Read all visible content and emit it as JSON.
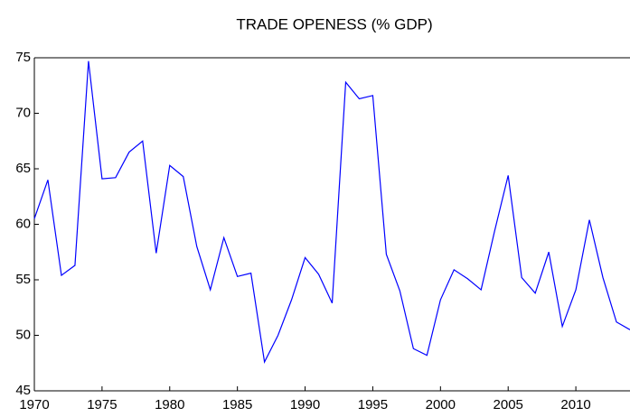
{
  "chart_data": {
    "type": "line",
    "title": "TRADE OPENESS (% GDP)",
    "x": [
      1970,
      1971,
      1972,
      1973,
      1974,
      1975,
      1976,
      1977,
      1978,
      1979,
      1980,
      1981,
      1982,
      1983,
      1984,
      1985,
      1986,
      1987,
      1988,
      1989,
      1990,
      1991,
      1992,
      1993,
      1994,
      1995,
      1996,
      1997,
      1998,
      1999,
      2000,
      2001,
      2002,
      2003,
      2004,
      2005,
      2006,
      2007,
      2008,
      2009,
      2010,
      2011,
      2012,
      2013,
      2014
    ],
    "series": [
      {
        "name": "TRADE OPENESS (% GDP)",
        "color": "#0000ff",
        "values": [
          60.5,
          64.0,
          55.4,
          56.3,
          74.7,
          64.1,
          64.2,
          66.5,
          67.5,
          57.4,
          65.3,
          64.3,
          58.0,
          54.1,
          58.8,
          55.3,
          55.6,
          47.6,
          50.0,
          53.2,
          57.0,
          55.5,
          52.9,
          72.8,
          71.3,
          71.6,
          57.3,
          54.0,
          48.8,
          48.2,
          53.2,
          55.9,
          55.1,
          54.1,
          59.4,
          64.4,
          55.2,
          53.8,
          57.5,
          50.8,
          54.1,
          60.4,
          55.2,
          51.2,
          50.5
        ]
      }
    ],
    "xlim": [
      1970,
      2014
    ],
    "ylim": [
      45,
      75
    ],
    "xticks": [
      1970,
      1975,
      1980,
      1985,
      1990,
      1995,
      2000,
      2005,
      2010
    ],
    "yticks": [
      45,
      50,
      55,
      60,
      65,
      70,
      75
    ]
  }
}
